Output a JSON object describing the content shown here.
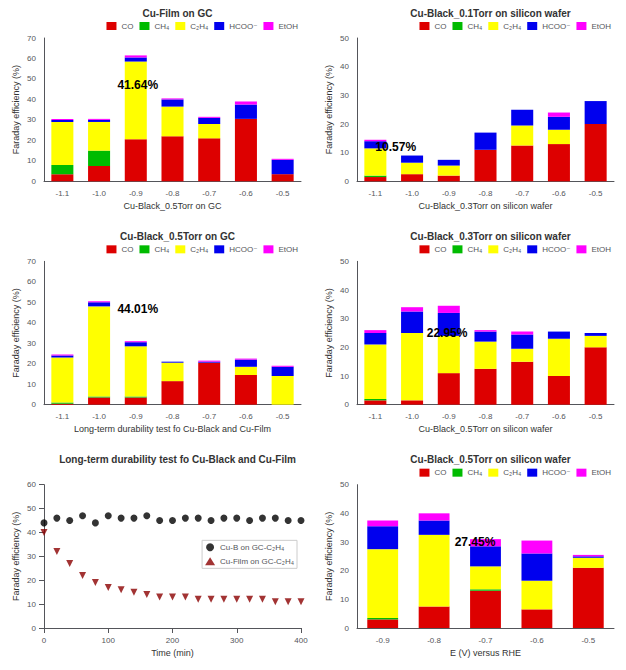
{
  "chart_data": [
    {
      "type": "bar",
      "title": "Cu-Film on GC",
      "xlabel": "Cu-Black_0.5Torr on GC",
      "ylabel": "Faraday efficiency (%)",
      "categories": [
        "-1.1",
        "-1.0",
        "-0.9",
        "-0.8",
        "-0.7",
        "-0.6",
        "-0.5"
      ],
      "series": [
        {
          "name": "CO",
          "color": "#dd0000",
          "values": [
            3.5,
            7.5,
            20.5,
            22.0,
            21.0,
            30.5,
            3.5
          ]
        },
        {
          "name": "CH₄",
          "color": "#00bb00",
          "values": [
            4.5,
            7.5,
            0.0,
            0.0,
            0.0,
            0.0,
            0.0
          ]
        },
        {
          "name": "C₂H₄",
          "color": "#ffff00",
          "values": [
            21.0,
            14.0,
            38.0,
            14.5,
            7.0,
            0.0,
            0.0
          ]
        },
        {
          "name": "HCOO⁻",
          "color": "#0000ee",
          "values": [
            1.0,
            1.0,
            2.0,
            3.5,
            3.0,
            7.0,
            7.0
          ]
        },
        {
          "name": "EtOH",
          "color": "#ff00ff",
          "values": [
            0.5,
            0.5,
            1.0,
            0.5,
            0.5,
            1.5,
            0.5
          ]
        }
      ],
      "stacked": true,
      "ylim": [
        0,
        70
      ],
      "yticks": [
        0,
        10,
        20,
        30,
        40,
        50,
        60,
        70
      ],
      "legend": "upper right",
      "grid": false,
      "annotations": [
        {
          "text": "41.64%",
          "x": 1.5,
          "y": 44
        }
      ]
    },
    {
      "type": "bar",
      "title": "Cu-Black_0.1Torr on silicon wafer",
      "xlabel": "Cu-Black_0.3Torr on silicon wafer",
      "ylabel": "Faraday efficiency (%)",
      "categories": [
        "-1.1",
        "-1.0",
        "-0.9",
        "-0.8",
        "-0.7",
        "-0.6",
        "-0.5"
      ],
      "series": [
        {
          "name": "CO",
          "color": "#dd0000",
          "values": [
            1.5,
            2.5,
            2.0,
            11.0,
            12.5,
            13.0,
            20.0
          ]
        },
        {
          "name": "CH₄",
          "color": "#00bb00",
          "values": [
            0.5,
            0.0,
            0.0,
            0.0,
            0.0,
            0.0,
            0.0
          ]
        },
        {
          "name": "C₂H₄",
          "color": "#ffff00",
          "values": [
            9.5,
            4.0,
            3.5,
            0.0,
            7.0,
            5.0,
            0.0
          ]
        },
        {
          "name": "HCOO⁻",
          "color": "#0000ee",
          "values": [
            2.5,
            2.5,
            2.0,
            6.0,
            5.5,
            4.5,
            8.0
          ]
        },
        {
          "name": "EtOH",
          "color": "#ff00ff",
          "values": [
            0.5,
            0.0,
            0.0,
            0.0,
            0.0,
            1.5,
            0.0
          ]
        }
      ],
      "stacked": true,
      "ylim": [
        0,
        50
      ],
      "yticks": [
        0,
        10,
        20,
        30,
        40,
        50
      ],
      "legend": "upper right",
      "grid": false,
      "annotations": [
        {
          "text": "10.57%",
          "x": 0.0,
          "y": 10
        }
      ]
    },
    {
      "type": "bar",
      "title": "Cu-Black_0.5Torr on GC",
      "xlabel": "Long-term durability test fo Cu-Black and Cu-Film",
      "ylabel": "Faraday efficiency (%)",
      "categories": [
        "-1.1",
        "-1.0",
        "-0.9",
        "-0.8",
        "-0.7",
        "-0.6",
        "-0.5"
      ],
      "series": [
        {
          "name": "CO",
          "color": "#dd0000",
          "values": [
            0.5,
            3.5,
            3.5,
            11.5,
            20.5,
            14.5,
            0.0
          ]
        },
        {
          "name": "CH₄",
          "color": "#00bb00",
          "values": [
            0.5,
            0.5,
            0.5,
            0.0,
            0.0,
            0.0,
            0.0
          ]
        },
        {
          "name": "C₂H₄",
          "color": "#ffff00",
          "values": [
            22.0,
            44.0,
            24.5,
            9.0,
            0.0,
            4.0,
            14.0
          ]
        },
        {
          "name": "HCOO⁻",
          "color": "#0000ee",
          "values": [
            1.0,
            2.0,
            2.0,
            0.5,
            0.5,
            3.5,
            4.5
          ]
        },
        {
          "name": "EtOH",
          "color": "#ff00ff",
          "values": [
            0.5,
            0.5,
            0.5,
            0.0,
            0.5,
            0.5,
            0.5
          ]
        }
      ],
      "stacked": true,
      "ylim": [
        0,
        70
      ],
      "yticks": [
        0,
        10,
        20,
        30,
        40,
        50,
        60,
        70
      ],
      "legend": "upper right",
      "grid": false,
      "annotations": [
        {
          "text": "44.01%",
          "x": 1.5,
          "y": 44
        }
      ]
    },
    {
      "type": "bar",
      "title": "Cu-Black_0.3Torr on silicon wafer",
      "xlabel": "Cu-Black_0.5Torr on silicon wafer",
      "ylabel": "Faraday efficiency (%)",
      "categories": [
        "-1.1",
        "-1.0",
        "-0.9",
        "-0.8",
        "-0.7",
        "-0.6",
        "-0.5"
      ],
      "series": [
        {
          "name": "CO",
          "color": "#dd0000",
          "values": [
            1.5,
            1.5,
            11.0,
            12.5,
            15.0,
            10.0,
            20.0
          ]
        },
        {
          "name": "CH₄",
          "color": "#00bb00",
          "values": [
            0.5,
            0.0,
            0.0,
            0.0,
            0.0,
            0.0,
            0.0
          ]
        },
        {
          "name": "C₂H₄",
          "color": "#ffff00",
          "values": [
            19.0,
            23.5,
            13.0,
            9.5,
            4.5,
            13.0,
            4.0
          ]
        },
        {
          "name": "HCOO⁻",
          "color": "#0000ee",
          "values": [
            4.0,
            7.5,
            8.0,
            3.5,
            5.0,
            2.5,
            1.0
          ]
        },
        {
          "name": "EtOH",
          "color": "#ff00ff",
          "values": [
            1.0,
            1.5,
            2.5,
            0.5,
            1.0,
            0.0,
            0.0
          ]
        }
      ],
      "stacked": true,
      "ylim": [
        0,
        50
      ],
      "yticks": [
        0,
        10,
        20,
        30,
        40,
        50
      ],
      "legend": "upper right",
      "grid": false,
      "annotations": [
        {
          "text": "22.95%",
          "x": 1.4,
          "y": 23
        }
      ]
    },
    {
      "type": "scatter",
      "title": "Long-term durability test fo Cu-Black and Cu-Film",
      "xlabel": "Time (min)",
      "ylabel": "Faraday efficiency (%)",
      "x": [
        0,
        20,
        40,
        60,
        80,
        100,
        120,
        140,
        160,
        180,
        200,
        220,
        240,
        260,
        280,
        300,
        320,
        340,
        360,
        380,
        400
      ],
      "series": [
        {
          "name": "Cu-B on GC-C₂H₄",
          "color": "#000000",
          "marker": "circle",
          "values": [
            44,
            46,
            45,
            47,
            44,
            47,
            46,
            46,
            47,
            45,
            45,
            46,
            46,
            45,
            46,
            46,
            45,
            46,
            46,
            45,
            45
          ]
        },
        {
          "name": "Cu-Film on GC-C₂H₄",
          "color": "#8B0000",
          "marker": "triangle_down",
          "values": [
            40,
            32,
            27,
            22,
            19,
            17,
            16,
            15,
            14,
            13,
            13,
            13,
            12,
            12,
            12,
            12,
            12,
            12,
            11,
            11,
            11
          ]
        }
      ],
      "xlim": [
        0,
        400
      ],
      "xticks": [
        0,
        100,
        200,
        300,
        400
      ],
      "ylim": [
        0,
        60
      ],
      "yticks": [
        0,
        10,
        20,
        30,
        40,
        50,
        60
      ],
      "legend": "center right",
      "grid": false
    },
    {
      "type": "bar",
      "title": "Cu-Black_0.5Torr on silicon wafer",
      "xlabel": "E (V) versus RHE",
      "ylabel": "Faraday efficiency (%)",
      "categories": [
        "-0.9",
        "-0.8",
        "-0.7",
        "-0.6",
        "-0.5"
      ],
      "series": [
        {
          "name": "CO",
          "color": "#dd0000",
          "values": [
            3.0,
            7.5,
            13.0,
            6.5,
            21.0
          ]
        },
        {
          "name": "CH₄",
          "color": "#00bb00",
          "values": [
            0.5,
            0.0,
            0.5,
            0.0,
            0.0
          ]
        },
        {
          "name": "C₂H₄",
          "color": "#ffff00",
          "values": [
            24.0,
            25.0,
            8.0,
            10.0,
            3.5
          ]
        },
        {
          "name": "HCOO⁻",
          "color": "#0000ee",
          "values": [
            8.0,
            5.0,
            7.0,
            9.5,
            0.5
          ]
        },
        {
          "name": "EtOH",
          "color": "#ff00ff",
          "values": [
            2.0,
            2.5,
            2.5,
            4.5,
            0.5
          ]
        }
      ],
      "stacked": true,
      "ylim": [
        0,
        50
      ],
      "yticks": [
        0,
        10,
        20,
        30,
        40,
        50
      ],
      "legend": "upper right",
      "grid": false,
      "annotations": [
        {
          "text": "27.45%",
          "x": 1.4,
          "y": 28
        }
      ]
    }
  ]
}
